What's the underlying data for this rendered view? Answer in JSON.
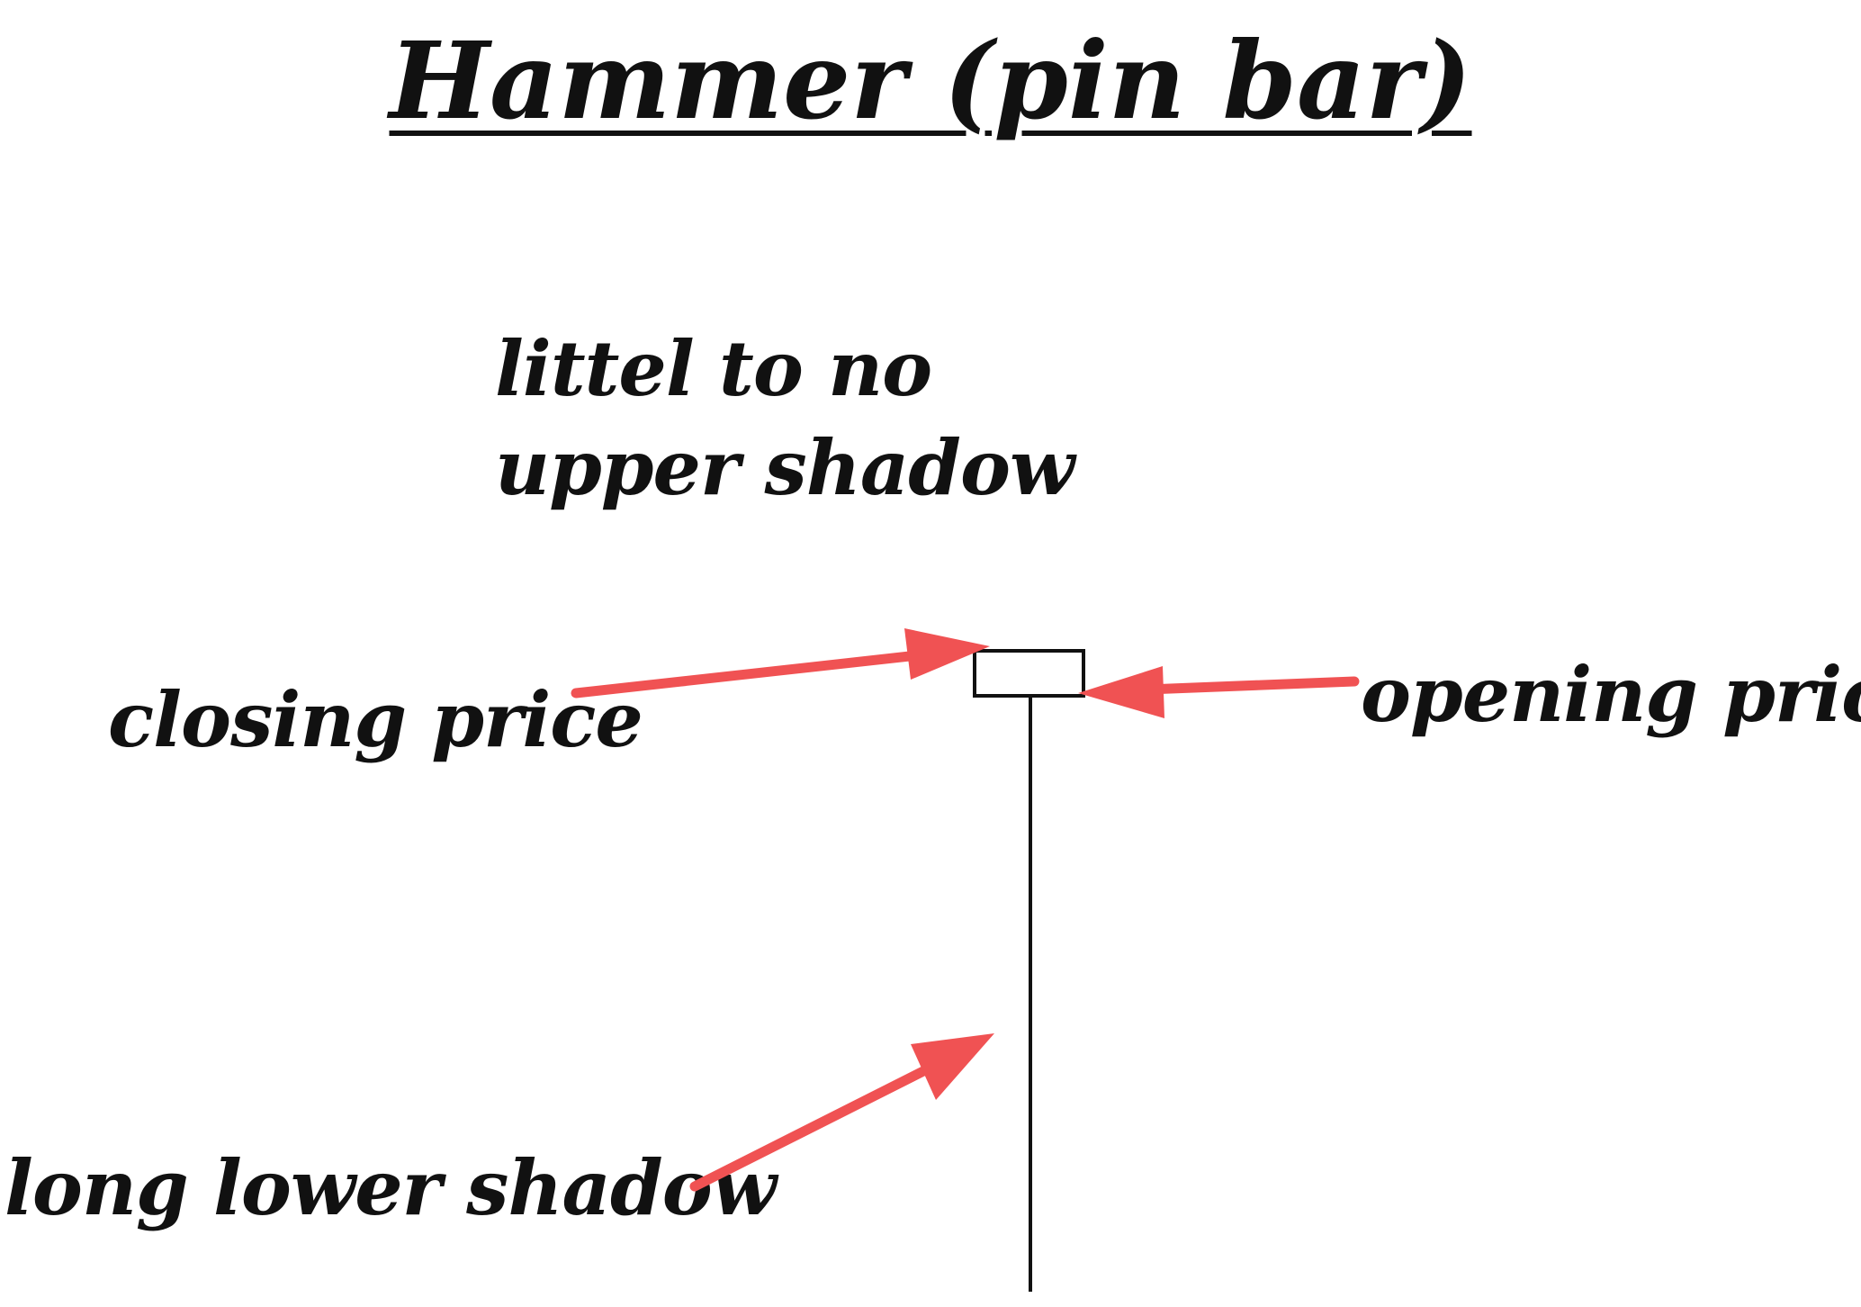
{
  "title": "Hammer (pin bar)",
  "labels": {
    "upper_shadow_line1": "littel to no",
    "upper_shadow_line2": "upper shadow",
    "closing_price": "closing price",
    "opening_price": "opening price",
    "long_lower_shadow": "long lower shadow"
  },
  "colors": {
    "arrow": "#f05253",
    "candle_stroke": "#111111",
    "candle_fill": "#ffffff"
  }
}
